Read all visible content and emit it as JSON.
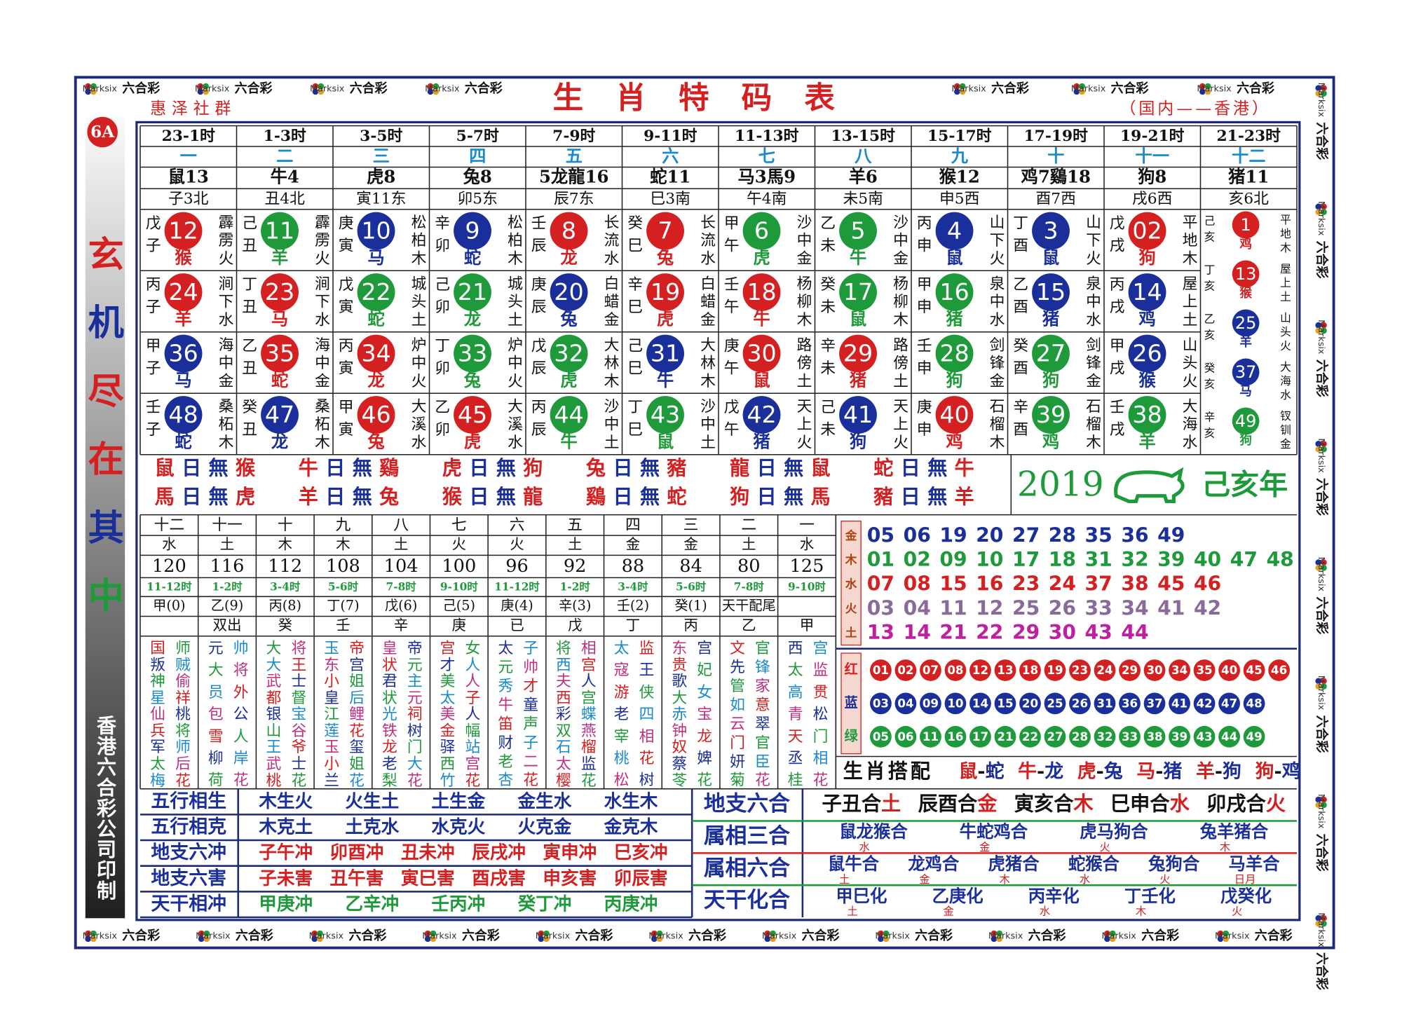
{
  "header": {
    "title": "生肖特码表",
    "left": "惠泽社群",
    "right": "（国内——香港）",
    "badge": "6A",
    "slogan": "玄机尽在其中",
    "printer": "香港六合彩公司印制",
    "watermark": [
      "Marksix",
      "六合彩"
    ]
  },
  "grid": {
    "times": [
      "23-1时",
      "1-3时",
      "3-5时",
      "5-7时",
      "7-9时",
      "9-11时",
      "11-13时",
      "13-15时",
      "15-17时",
      "17-19时",
      "19-21时",
      "21-23时"
    ],
    "months": [
      "一",
      "二",
      "三",
      "四",
      "五",
      "六",
      "七",
      "八",
      "九",
      "十",
      "十一",
      "十二"
    ],
    "zodiacs": [
      "鼠13",
      "牛4",
      "虎8",
      "兔8",
      "5龙龍16",
      "蛇11",
      "马3馬9",
      "羊6",
      "猴12",
      "鸡7鷄18",
      "狗8",
      "猪11"
    ],
    "branches": [
      "子3北",
      "丑4北",
      "寅11东",
      "卯5东",
      "辰7东",
      "巳3南",
      "午4南",
      "未5南",
      "申5西",
      "酉7西",
      "戌6西",
      "亥6北"
    ],
    "rows": [
      [
        {
          "stem": "戊子",
          "num": "12",
          "zodiac": "猴",
          "nayin": "霹雳火"
        },
        {
          "stem": "己丑",
          "num": "11",
          "zodiac": "羊",
          "nayin": "霹雳火"
        },
        {
          "stem": "庚寅",
          "num": "10",
          "zodiac": "马",
          "nayin": "松柏木"
        },
        {
          "stem": "辛卯",
          "num": "9",
          "zodiac": "蛇",
          "nayin": "松柏木"
        },
        {
          "stem": "壬辰",
          "num": "8",
          "zodiac": "龙",
          "nayin": "长流水"
        },
        {
          "stem": "癸巳",
          "num": "7",
          "zodiac": "兔",
          "nayin": "长流水"
        },
        {
          "stem": "甲午",
          "num": "6",
          "zodiac": "虎",
          "nayin": "沙中金"
        },
        {
          "stem": "乙未",
          "num": "5",
          "zodiac": "牛",
          "nayin": "沙中金"
        },
        {
          "stem": "丙申",
          "num": "4",
          "zodiac": "鼠",
          "nayin": "山下火"
        },
        {
          "stem": "丁酉",
          "num": "3",
          "zodiac": "鼠",
          "nayin": "山下火"
        },
        {
          "stem": "戊戌",
          "num": "02",
          "zodiac": "狗",
          "nayin": "平地木"
        }
      ],
      [
        {
          "stem": "丙子",
          "num": "24",
          "zodiac": "羊",
          "nayin": "涧下水"
        },
        {
          "stem": "丁丑",
          "num": "23",
          "zodiac": "马",
          "nayin": "涧下水"
        },
        {
          "stem": "戊寅",
          "num": "22",
          "zodiac": "蛇",
          "nayin": "城头土"
        },
        {
          "stem": "己卯",
          "num": "21",
          "zodiac": "龙",
          "nayin": "城头土"
        },
        {
          "stem": "庚辰",
          "num": "20",
          "zodiac": "兔",
          "nayin": "白蜡金"
        },
        {
          "stem": "辛巳",
          "num": "19",
          "zodiac": "虎",
          "nayin": "白蜡金"
        },
        {
          "stem": "壬午",
          "num": "18",
          "zodiac": "牛",
          "nayin": "杨柳木"
        },
        {
          "stem": "癸未",
          "num": "17",
          "zodiac": "鼠",
          "nayin": "杨柳木"
        },
        {
          "stem": "甲申",
          "num": "16",
          "zodiac": "猪",
          "nayin": "泉中水"
        },
        {
          "stem": "乙酉",
          "num": "15",
          "zodiac": "猪",
          "nayin": "泉中水"
        },
        {
          "stem": "丙戌",
          "num": "14",
          "zodiac": "鸡",
          "nayin": "屋上土"
        }
      ],
      [
        {
          "stem": "甲子",
          "num": "36",
          "zodiac": "马",
          "nayin": "海中金"
        },
        {
          "stem": "乙丑",
          "num": "35",
          "zodiac": "蛇",
          "nayin": "海中金"
        },
        {
          "stem": "丙寅",
          "num": "34",
          "zodiac": "龙",
          "nayin": "炉中火"
        },
        {
          "stem": "丁卯",
          "num": "33",
          "zodiac": "兔",
          "nayin": "炉中火"
        },
        {
          "stem": "戊辰",
          "num": "32",
          "zodiac": "虎",
          "nayin": "大林木"
        },
        {
          "stem": "己巳",
          "num": "31",
          "zodiac": "牛",
          "nayin": "大林木"
        },
        {
          "stem": "庚午",
          "num": "30",
          "zodiac": "鼠",
          "nayin": "路傍土"
        },
        {
          "stem": "辛未",
          "num": "29",
          "zodiac": "猪",
          "nayin": "路傍土"
        },
        {
          "stem": "壬申",
          "num": "28",
          "zodiac": "狗",
          "nayin": "剑锋金"
        },
        {
          "stem": "癸酉",
          "num": "27",
          "zodiac": "狗",
          "nayin": "剑锋金"
        },
        {
          "stem": "甲戌",
          "num": "26",
          "zodiac": "猴",
          "nayin": "山头火"
        }
      ],
      [
        {
          "stem": "壬子",
          "num": "48",
          "zodiac": "蛇",
          "nayin": "桑柘木"
        },
        {
          "stem": "癸丑",
          "num": "47",
          "zodiac": "龙",
          "nayin": "桑柘木"
        },
        {
          "stem": "甲寅",
          "num": "46",
          "zodiac": "兔",
          "nayin": "大溪水"
        },
        {
          "stem": "乙卯",
          "num": "45",
          "zodiac": "虎",
          "nayin": "大溪水"
        },
        {
          "stem": "丙辰",
          "num": "44",
          "zodiac": "牛",
          "nayin": "沙中土"
        },
        {
          "stem": "丁巳",
          "num": "43",
          "zodiac": "鼠",
          "nayin": "沙中土"
        },
        {
          "stem": "戊午",
          "num": "42",
          "zodiac": "猪",
          "nayin": "天上火"
        },
        {
          "stem": "己未",
          "num": "41",
          "zodiac": "狗",
          "nayin": "天上火"
        },
        {
          "stem": "庚申",
          "num": "40",
          "zodiac": "鸡",
          "nayin": "石榴木"
        },
        {
          "stem": "辛酉",
          "num": "39",
          "zodiac": "鸡",
          "nayin": "石榴木"
        },
        {
          "stem": "壬戌",
          "num": "38",
          "zodiac": "羊",
          "nayin": "大海水"
        }
      ]
    ],
    "last": [
      {
        "stem": "己亥",
        "num": "1",
        "zodiac": "鸡",
        "nayin": "平地木"
      },
      {
        "stem": "丁亥",
        "num": "13",
        "zodiac": "猴",
        "nayin": "屋上土"
      },
      {
        "stem": "乙亥",
        "num": "25",
        "zodiac": "羊",
        "nayin": "山头火"
      },
      {
        "stem": "癸亥",
        "num": "37",
        "zodiac": "马",
        "nayin": "大海水"
      },
      {
        "stem": "辛亥",
        "num": "49",
        "zodiac": "狗",
        "nayin": "钗钏金"
      }
    ]
  },
  "banner": {
    "items": [
      "鼠日無猴",
      "牛日無鷄",
      "虎日無狗",
      "兔日無豬",
      "龍日無鼠",
      "蛇日無牛",
      "馬日無虎",
      "羊日無兔",
      "猴日無龍",
      "鷄日無蛇",
      "狗日無馬",
      "豬日無羊"
    ],
    "year": "2019",
    "year_name": "己亥年"
  },
  "lower": {
    "months": [
      "十二",
      "十一",
      "十",
      "九",
      "八",
      "七",
      "六",
      "五",
      "四",
      "三",
      "二",
      "一"
    ],
    "elements": [
      "水",
      "土",
      "木",
      "木",
      "土",
      "火",
      "火",
      "土",
      "金",
      "金",
      "土",
      "水"
    ],
    "numbers": [
      "120",
      "116",
      "112",
      "108",
      "104",
      "100",
      "96",
      "92",
      "88",
      "84",
      "80",
      "125"
    ],
    "times": [
      "11-12时",
      "1-2时",
      "3-4时",
      "5-6时",
      "7-8时",
      "9-10时",
      "11-12时",
      "1-2时",
      "3-4时",
      "5-6时",
      "7-8时",
      "9-10时"
    ],
    "stems": [
      "甲(0)",
      "乙(9)",
      "丙(8)",
      "丁(7)",
      "戊(6)",
      "己(5)",
      "庚(4)",
      "辛(3)",
      "壬(2)",
      "癸(1)",
      "天干配尾",
      null
    ],
    "pairs": [
      null,
      "双出",
      "癸",
      "壬",
      "辛",
      "庚",
      "已",
      "戊",
      "丁",
      "丙",
      "乙",
      "甲"
    ],
    "names": [
      [
        "国叛神星仙兵军太梅",
        "师贼偷祥桃将师后花"
      ],
      [
        "元大员包雪柳荷",
        "帅将外公人岸花"
      ],
      [
        "大大武都银山王武桃",
        "将王士督宝谷爷士花"
      ],
      [
        "玉东小皇江莲玉小兰",
        "帝宫姐后鲤花玺姐花"
      ],
      [
        "皇状君状光铁龙老梨",
        "帝元主元祠树门大花"
      ],
      [
        "宫才美太美金驿西竹",
        "女人人子人幅站宫花"
      ],
      [
        "太元秀牛笛财老杏",
        "子帅才童声子二花"
      ],
      [
        "将西夫西彩双石太樱",
        "相宫人宫蝶燕榴监花"
      ],
      [
        "太寇游老宰桃松",
        "监王侠四相花树"
      ],
      [
        "东贵歌大赤钟奴蔡苓",
        "宫妃女宝龙婢花"
      ],
      [
        "文先管如云门妍菊",
        "官锋家意翠官臣花"
      ],
      [
        "西太高青天丞桂",
        "宫监贯松门相花"
      ]
    ]
  },
  "wuxing": [
    {
      "label": "金",
      "numbers": [
        "05",
        "06",
        "19",
        "20",
        "27",
        "28",
        "35",
        "36",
        "49"
      ]
    },
    {
      "label": "木",
      "numbers": [
        "01",
        "02",
        "09",
        "10",
        "17",
        "18",
        "31",
        "32",
        "39",
        "40",
        "47",
        "48"
      ]
    },
    {
      "label": "水",
      "numbers": [
        "07",
        "08",
        "15",
        "16",
        "23",
        "24",
        "37",
        "38",
        "45",
        "46"
      ]
    },
    {
      "label": "火",
      "numbers": [
        "03",
        "04",
        "11",
        "12",
        "25",
        "26",
        "33",
        "34",
        "41",
        "42"
      ]
    },
    {
      "label": "土",
      "numbers": [
        "13",
        "14",
        "21",
        "22",
        "29",
        "30",
        "43",
        "44"
      ]
    }
  ],
  "waves": [
    {
      "label": "红",
      "numbers": [
        "01",
        "02",
        "07",
        "08",
        "12",
        "13",
        "18",
        "19",
        "23",
        "24",
        "29",
        "30",
        "34",
        "35",
        "40",
        "45",
        "46"
      ]
    },
    {
      "label": "蓝",
      "numbers": [
        "03",
        "04",
        "09",
        "10",
        "14",
        "15",
        "20",
        "25",
        "26",
        "31",
        "36",
        "37",
        "41",
        "42",
        "47",
        "48"
      ]
    },
    {
      "label": "绿",
      "numbers": [
        "05",
        "06",
        "11",
        "16",
        "17",
        "21",
        "22",
        "27",
        "28",
        "32",
        "33",
        "38",
        "39",
        "43",
        "44",
        "49"
      ]
    }
  ],
  "match": {
    "label": "生肖搭配",
    "pairs": [
      "鼠-蛇",
      "牛-龙",
      "虎-兔",
      "马-猪",
      "羊-狗",
      "狗-鸡"
    ]
  },
  "relations_left": [
    {
      "label": "五行相生",
      "items": [
        "木生火",
        "火生土",
        "土生金",
        "金生水",
        "水生木"
      ]
    },
    {
      "label": "五行相克",
      "items": [
        "木克土",
        "土克水",
        "水克火",
        "火克金",
        "金克木"
      ]
    },
    {
      "label": "地支六冲",
      "items": [
        "子午冲",
        "卯酉冲",
        "丑未冲",
        "辰戌冲",
        "寅申冲",
        "巳亥冲"
      ]
    },
    {
      "label": "地支六害",
      "items": [
        "子未害",
        "丑午害",
        "寅巳害",
        "酉戌害",
        "申亥害",
        "卯辰害"
      ]
    },
    {
      "label": "天干相冲",
      "items": [
        "甲庚冲",
        "乙辛冲",
        "壬丙冲",
        "癸丁冲",
        "丙庚冲"
      ]
    }
  ],
  "relations_right": [
    {
      "label": "地支六合",
      "items": [
        {
          "text": "子丑合土"
        },
        {
          "text": "辰酉合金"
        },
        {
          "text": "寅亥合木"
        },
        {
          "text": "巳申合水"
        },
        {
          "text": "卯戌合火"
        }
      ]
    },
    {
      "label": "属相三合",
      "items": [
        {
          "text": "鼠龙猴合",
          "sub": "水"
        },
        {
          "text": "牛蛇鸡合",
          "sub": "金"
        },
        {
          "text": "虎马狗合",
          "sub": "火"
        },
        {
          "text": "兔羊猪合",
          "sub": "木"
        }
      ]
    },
    {
      "label": "属相六合",
      "items": [
        {
          "text": "鼠牛合",
          "sub": "土"
        },
        {
          "text": "龙鸡合",
          "sub": "金"
        },
        {
          "text": "虎猪合",
          "sub": "木"
        },
        {
          "text": "蛇猴合",
          "sub": "水"
        },
        {
          "text": "兔狗合",
          "sub": "火"
        },
        {
          "text": "马羊合",
          "sub": "日月"
        }
      ]
    },
    {
      "label": "天干化合",
      "items": [
        {
          "text": "甲巳化",
          "sub": "土"
        },
        {
          "text": "乙庚化",
          "sub": "金"
        },
        {
          "text": "丙辛化",
          "sub": "水"
        },
        {
          "text": "丁壬化",
          "sub": "木"
        },
        {
          "text": "戊癸化",
          "sub": "火"
        }
      ]
    }
  ]
}
